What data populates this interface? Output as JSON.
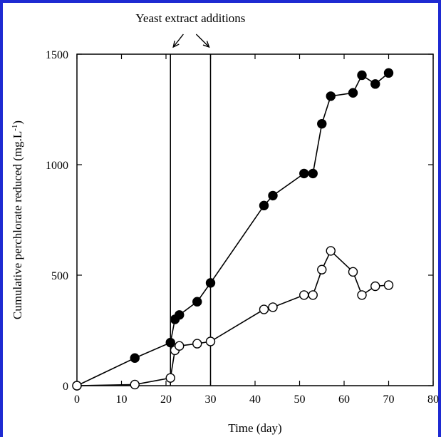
{
  "chart_data": {
    "type": "scatter",
    "xlabel": "Time (day)",
    "ylabel_main": "Cumulative perchlorate reduced (mg.L",
    "ylabel_sup": "-1",
    "ylabel_close": ")",
    "xlim": [
      0,
      80
    ],
    "ylim": [
      0,
      1500
    ],
    "x_ticks": [
      0,
      10,
      20,
      30,
      40,
      50,
      60,
      70,
      80
    ],
    "y_ticks": [
      0,
      500,
      1000,
      1500
    ],
    "annotation": {
      "text": "Yeast extract additions",
      "lines_x": [
        21,
        30
      ]
    },
    "series": [
      {
        "marker": "filled-circle",
        "color": "#000000",
        "points": [
          [
            0,
            0
          ],
          [
            13,
            125
          ],
          [
            21,
            195
          ],
          [
            22,
            300
          ],
          [
            23,
            320
          ],
          [
            27,
            380
          ],
          [
            30,
            465
          ],
          [
            42,
            815
          ],
          [
            44,
            860
          ],
          [
            51,
            960
          ],
          [
            53,
            960
          ],
          [
            55,
            1185
          ],
          [
            57,
            1310
          ],
          [
            62,
            1325
          ],
          [
            64,
            1405
          ],
          [
            67,
            1365
          ],
          [
            70,
            1415
          ]
        ]
      },
      {
        "marker": "open-circle",
        "color": "#000000",
        "points": [
          [
            0,
            0
          ],
          [
            13,
            5
          ],
          [
            21,
            35
          ],
          [
            22,
            160
          ],
          [
            23,
            180
          ],
          [
            27,
            190
          ],
          [
            30,
            200
          ],
          [
            42,
            345
          ],
          [
            44,
            355
          ],
          [
            51,
            410
          ],
          [
            53,
            410
          ],
          [
            55,
            525
          ],
          [
            57,
            610
          ],
          [
            62,
            515
          ],
          [
            64,
            410
          ],
          [
            67,
            450
          ],
          [
            70,
            455
          ]
        ]
      }
    ]
  }
}
